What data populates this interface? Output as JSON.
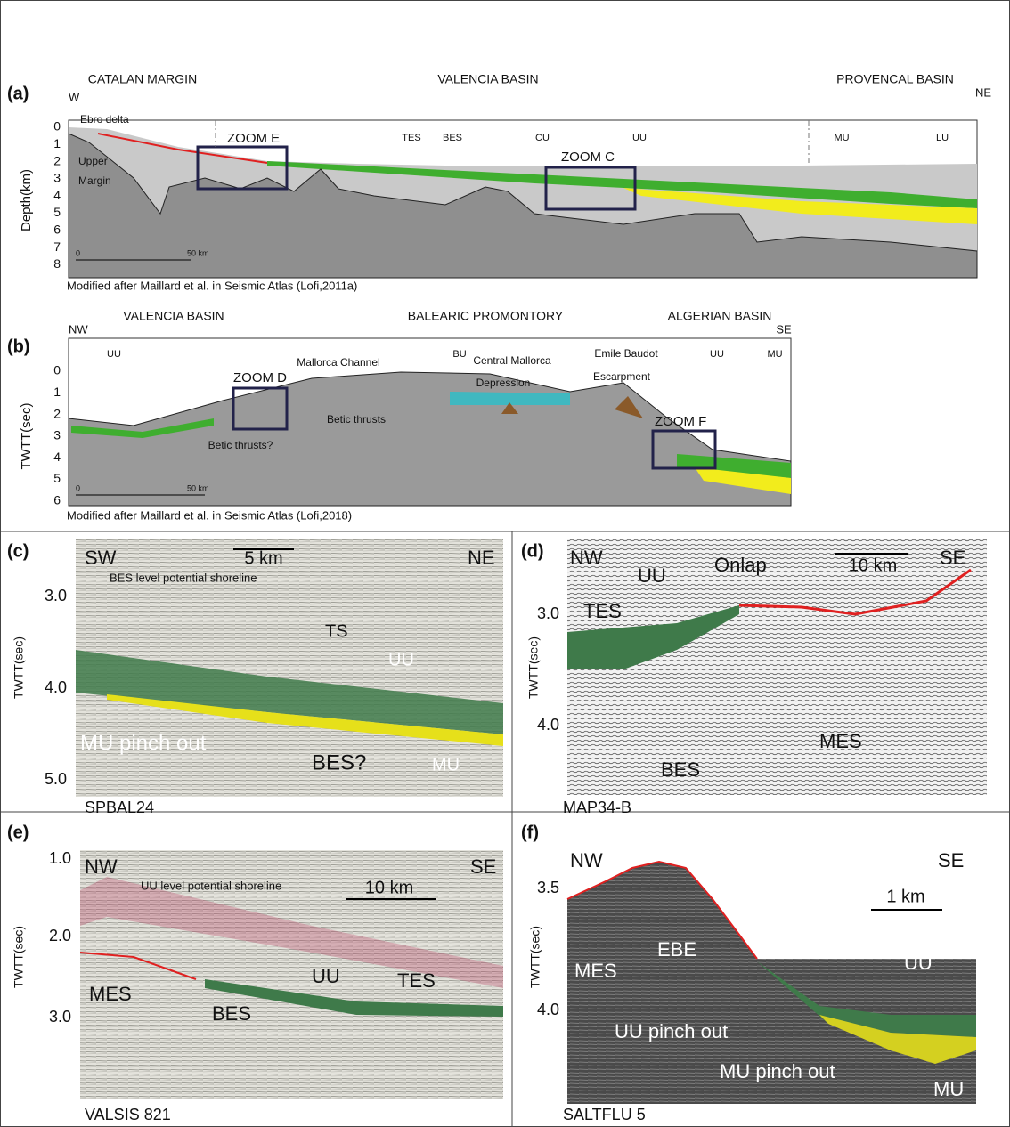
{
  "panel_a": {
    "label": "(a)",
    "corners": [
      "W",
      "NE"
    ],
    "regions": [
      "CATALAN MARGIN",
      "VALENCIA BASIN",
      "PROVENCAL BASIN"
    ],
    "axis_title": "Depth(km)",
    "ticks": [
      "0",
      "1",
      "2",
      "3",
      "4",
      "5",
      "6",
      "7",
      "8"
    ],
    "annotations": [
      "Ebro delta",
      "Upper",
      "Margin",
      "ZOOM E",
      "TES",
      "BES",
      "CU",
      "UU",
      "ZOOM C",
      "MU",
      "LU"
    ],
    "scale": [
      "0",
      "50 km"
    ],
    "credit": "Modified after Maillard et al. in Seismic Atlas (Lofi,2011a)"
  },
  "panel_b": {
    "label": "(b)",
    "corners": [
      "NW",
      "SE"
    ],
    "regions": [
      "VALENCIA BASIN",
      "BALEARIC PROMONTORY",
      "ALGERIAN BASIN"
    ],
    "axis_title": "TWTT(sec)",
    "ticks": [
      "0",
      "1",
      "2",
      "3",
      "4",
      "5",
      "6"
    ],
    "annotations": [
      "UU",
      "ZOOM D",
      "Mallorca Channel",
      "BU",
      "Central Mallorca",
      "Depression",
      "Emile Baudot",
      "Escarpment",
      "UU",
      "MU",
      "Betic thrusts?",
      "Betic thrusts",
      "ZOOM F"
    ],
    "scale": [
      "0",
      "50 km"
    ],
    "credit": "Modified after Maillard et al. in Seismic Atlas (Lofi,2018)"
  },
  "panel_c": {
    "label": "(c)",
    "corners": [
      "SW",
      "NE"
    ],
    "scale": "5 km",
    "axis_title": "TWTT(sec)",
    "ticks": [
      "3.0",
      "4.0",
      "5.0"
    ],
    "annotations": [
      "BES level potential shoreline",
      "TS",
      "UU",
      "MU pinch out",
      "BES?",
      "MU"
    ],
    "caption": "SPBAL24"
  },
  "panel_d": {
    "label": "(d)",
    "corners": [
      "NW",
      "SE"
    ],
    "scale": "10 km",
    "axis_title": "TWTT(sec)",
    "ticks": [
      "3.0",
      "4.0"
    ],
    "annotations": [
      "UU",
      "Onlap",
      "TES",
      "BES",
      "MES"
    ],
    "caption": "MAP34-B"
  },
  "panel_e": {
    "label": "(e)",
    "corners": [
      "NW",
      "SE"
    ],
    "scale": "10 km",
    "axis_title": "TWTT(sec)",
    "ticks": [
      "1.0",
      "2.0",
      "3.0"
    ],
    "annotations": [
      "UU level potential shoreline",
      "MES",
      "BES",
      "UU",
      "TES"
    ],
    "caption": "VALSIS 821"
  },
  "panel_f": {
    "label": "(f)",
    "corners": [
      "NW",
      "SE"
    ],
    "scale": "1 km",
    "axis_title": "TWTT(sec)",
    "ticks": [
      "3.5",
      "4.0"
    ],
    "annotations": [
      "MES",
      "EBE",
      "UU",
      "UU pinch out",
      "MU pinch out",
      "MU"
    ],
    "caption": "SALTFLU 5"
  }
}
